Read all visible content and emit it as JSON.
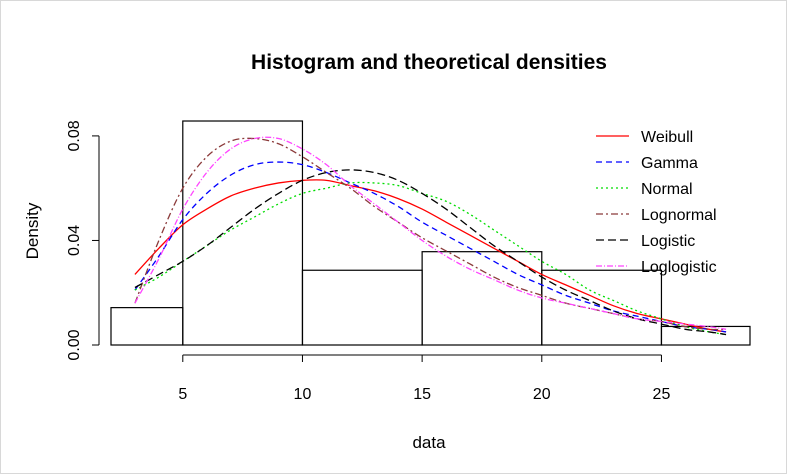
{
  "chart_data": {
    "type": "histogram",
    "title": "Histogram and theoretical densities",
    "xlabel": "data",
    "ylabel": "Density",
    "xlim": [
      2,
      28.7
    ],
    "ylim": [
      0,
      0.088
    ],
    "x_ticks": [
      "5",
      "10",
      "15",
      "20",
      "25"
    ],
    "y_ticks": [
      "0.00",
      "0.04",
      "0.08"
    ],
    "x_tick_values": [
      5,
      10,
      15,
      20,
      25
    ],
    "y_tick_values": [
      0,
      0.04,
      0.08
    ],
    "histogram": {
      "breaks": [
        2,
        5,
        10,
        15,
        20,
        25,
        28.7
      ],
      "densities": [
        0.0143,
        0.0857,
        0.0286,
        0.0357,
        0.0286,
        0.0071
      ]
    },
    "legend_position": "top-right",
    "series": [
      {
        "name": "Weibull",
        "color": "#ff0000",
        "dash": "",
        "x": [
          3,
          4,
          5,
          6,
          7,
          8,
          9,
          10,
          11,
          12,
          13,
          14,
          15,
          16,
          17,
          18,
          19,
          20,
          21,
          22,
          23,
          24,
          25,
          26,
          27,
          27.7
        ],
        "values": [
          0.027,
          0.037,
          0.046,
          0.052,
          0.057,
          0.06,
          0.062,
          0.063,
          0.063,
          0.061,
          0.059,
          0.056,
          0.052,
          0.047,
          0.042,
          0.037,
          0.032,
          0.027,
          0.023,
          0.019,
          0.015,
          0.012,
          0.01,
          0.008,
          0.006,
          0.005
        ]
      },
      {
        "name": "Gamma",
        "color": "#0000ff",
        "dash": "6,4",
        "x": [
          3,
          4,
          5,
          6,
          7,
          8,
          9,
          10,
          11,
          12,
          13,
          14,
          15,
          16,
          17,
          18,
          19,
          20,
          21,
          22,
          23,
          24,
          25,
          26,
          27,
          27.7
        ],
        "values": [
          0.021,
          0.034,
          0.048,
          0.058,
          0.065,
          0.069,
          0.07,
          0.069,
          0.066,
          0.062,
          0.058,
          0.053,
          0.047,
          0.042,
          0.037,
          0.032,
          0.027,
          0.023,
          0.019,
          0.016,
          0.013,
          0.011,
          0.009,
          0.007,
          0.006,
          0.005
        ]
      },
      {
        "name": "Normal",
        "color": "#00dd00",
        "dash": "2,3",
        "x": [
          3,
          4,
          5,
          6,
          7,
          8,
          9,
          10,
          11,
          12,
          13,
          14,
          15,
          16,
          17,
          18,
          19,
          20,
          21,
          22,
          23,
          24,
          25,
          26,
          27,
          27.7
        ],
        "values": [
          0.021,
          0.026,
          0.032,
          0.038,
          0.044,
          0.049,
          0.054,
          0.058,
          0.06,
          0.062,
          0.062,
          0.061,
          0.058,
          0.055,
          0.05,
          0.044,
          0.038,
          0.032,
          0.027,
          0.021,
          0.017,
          0.013,
          0.01,
          0.007,
          0.005,
          0.004
        ]
      },
      {
        "name": "Lognormal",
        "color": "#8b3a3a",
        "dash": "7,3,2,3",
        "x": [
          3,
          4,
          5,
          6,
          7,
          8,
          9,
          10,
          11,
          12,
          13,
          14,
          15,
          16,
          17,
          18,
          19,
          20,
          21,
          22,
          23,
          24,
          25,
          26,
          27,
          27.7
        ],
        "values": [
          0.016,
          0.04,
          0.06,
          0.072,
          0.078,
          0.079,
          0.077,
          0.072,
          0.066,
          0.06,
          0.053,
          0.047,
          0.041,
          0.036,
          0.031,
          0.026,
          0.022,
          0.019,
          0.016,
          0.014,
          0.012,
          0.01,
          0.009,
          0.007,
          0.006,
          0.006
        ]
      },
      {
        "name": "Logistic",
        "color": "#000000",
        "dash": "8,4",
        "x": [
          3,
          4,
          5,
          6,
          7,
          8,
          9,
          10,
          11,
          12,
          13,
          14,
          15,
          16,
          17,
          18,
          19,
          20,
          21,
          22,
          23,
          24,
          25,
          26,
          27,
          27.7
        ],
        "values": [
          0.022,
          0.027,
          0.032,
          0.038,
          0.045,
          0.052,
          0.058,
          0.063,
          0.066,
          0.067,
          0.066,
          0.063,
          0.058,
          0.052,
          0.045,
          0.038,
          0.032,
          0.026,
          0.021,
          0.017,
          0.013,
          0.01,
          0.008,
          0.006,
          0.005,
          0.004
        ]
      },
      {
        "name": "Loglogistic",
        "color": "#ff44ff",
        "dash": "6,2,1,2",
        "x": [
          3,
          4,
          5,
          6,
          7,
          8,
          9,
          10,
          11,
          12,
          13,
          14,
          15,
          16,
          17,
          18,
          19,
          20,
          21,
          22,
          23,
          24,
          25,
          26,
          27,
          27.7
        ],
        "values": [
          0.016,
          0.033,
          0.052,
          0.066,
          0.075,
          0.079,
          0.079,
          0.075,
          0.069,
          0.061,
          0.054,
          0.047,
          0.04,
          0.034,
          0.029,
          0.025,
          0.021,
          0.018,
          0.016,
          0.014,
          0.012,
          0.01,
          0.009,
          0.008,
          0.007,
          0.006
        ]
      }
    ]
  }
}
